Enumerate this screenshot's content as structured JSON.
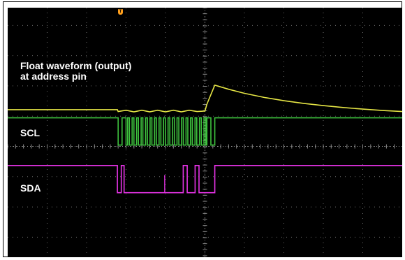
{
  "chart_data": {
    "type": "line",
    "title": "",
    "xlabel": "",
    "ylabel": "",
    "grid": true,
    "grid_divisions": {
      "x": 10,
      "y": 8
    },
    "series": [
      {
        "name": "Float waveform (output) at address pin",
        "label_lines": [
          "Float waveform (output)",
          "at address pin"
        ],
        "color": "#e6e645",
        "x": [
          0,
          2.78,
          2.8,
          3.0,
          3.2,
          3.4,
          3.6,
          3.8,
          4.0,
          4.2,
          4.4,
          4.6,
          4.8,
          5.0,
          5.05,
          5.25,
          5.6,
          6.0,
          6.5,
          7.0,
          7.5,
          8.0,
          8.5,
          9.0,
          9.5,
          10.0
        ],
        "y": [
          1.35,
          1.35,
          1.28,
          1.33,
          1.27,
          1.33,
          1.27,
          1.33,
          1.27,
          1.33,
          1.27,
          1.33,
          1.28,
          1.3,
          1.55,
          2.25,
          2.1,
          1.95,
          1.8,
          1.68,
          1.58,
          1.5,
          1.43,
          1.37,
          1.32,
          1.28
        ]
      },
      {
        "name": "SCL",
        "color": "#3ec23e",
        "high": 1.05,
        "low": 0.05,
        "low_intervals": [
          [
            2.8,
            2.9
          ],
          [
            3.0,
            5.05
          ],
          [
            5.15,
            5.25
          ]
        ],
        "burst_pulses": 18
      },
      {
        "name": "SDA",
        "color": "#e633e6",
        "high": -0.7,
        "low": -1.7,
        "low_intervals": [
          [
            2.78,
            2.88
          ],
          [
            2.95,
            4.45
          ],
          [
            4.55,
            4.75
          ],
          [
            4.85,
            5.25
          ]
        ],
        "glitches": [
          3.98
        ]
      }
    ]
  },
  "trigger_marker": "T"
}
